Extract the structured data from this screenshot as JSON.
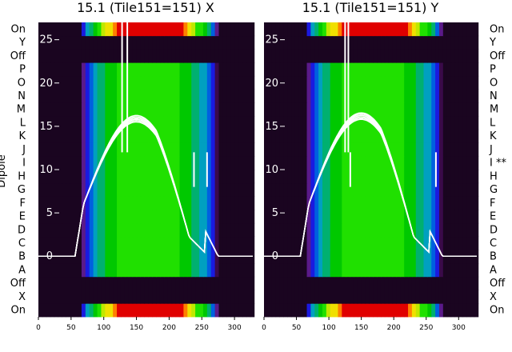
{
  "chart_data": [
    {
      "type": "heatmap",
      "title": "15.1 (Tile151=151) X",
      "ylabel": "Dipole",
      "xlim": [
        0,
        328
      ],
      "x_ticks": [
        0,
        50,
        100,
        150,
        200,
        250,
        300
      ],
      "overlay_y_ticks": [
        0,
        5,
        10,
        15,
        20,
        25
      ],
      "overlay_ylim": [
        -7,
        27
      ],
      "row_labels": [
        "On",
        "X",
        "Off",
        "A",
        "B",
        "C",
        "D",
        "E",
        "F",
        "G",
        "H",
        "I",
        "J",
        "K",
        "L",
        "M",
        "N",
        "O",
        "P",
        "Off",
        "Y",
        "On"
      ],
      "peak_y": 15.5,
      "spike_x": [
        128,
        136,
        238,
        258
      ],
      "band_edges_x": [
        64,
        275
      ]
    },
    {
      "type": "heatmap",
      "title": "15.1 (Tile151=151) Y",
      "ylabel": "",
      "xlim": [
        0,
        328
      ],
      "x_ticks": [
        0,
        50,
        100,
        150,
        200,
        250,
        300
      ],
      "overlay_y_ticks": [
        0,
        5,
        10,
        15,
        20,
        25
      ],
      "overlay_ylim": [
        -7,
        27
      ],
      "row_labels": [
        "On",
        "X",
        "Off",
        "A",
        "B",
        "C",
        "D",
        "E",
        "F",
        "G",
        "H",
        "I **",
        "J",
        "K",
        "L",
        "M",
        "N",
        "O",
        "P",
        "Off",
        "Y",
        "On"
      ],
      "peak_y": 15.8,
      "spike_x": [
        125,
        130,
        133,
        265
      ],
      "band_edges_x": [
        64,
        275
      ]
    }
  ]
}
